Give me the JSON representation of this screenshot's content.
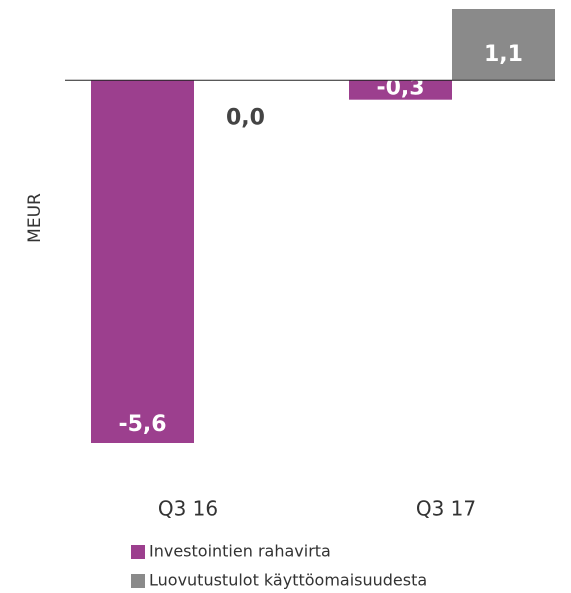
{
  "chart_data": {
    "type": "bar",
    "y_label": "MEUR",
    "categories": [
      "Q3 16",
      "Q3 17"
    ],
    "series": [
      {
        "name": "Investointien rahavirta",
        "color": "#9c3f8e",
        "values": [
          -5.6,
          -0.3
        ],
        "value_labels": [
          "-5,6",
          "-0,3"
        ]
      },
      {
        "name": "Luovutustulot käyttöomaisuudesta",
        "color": "#8a8a8a",
        "values": [
          0.0,
          1.1
        ],
        "value_labels": [
          "0,0",
          "1,1"
        ]
      }
    ]
  }
}
